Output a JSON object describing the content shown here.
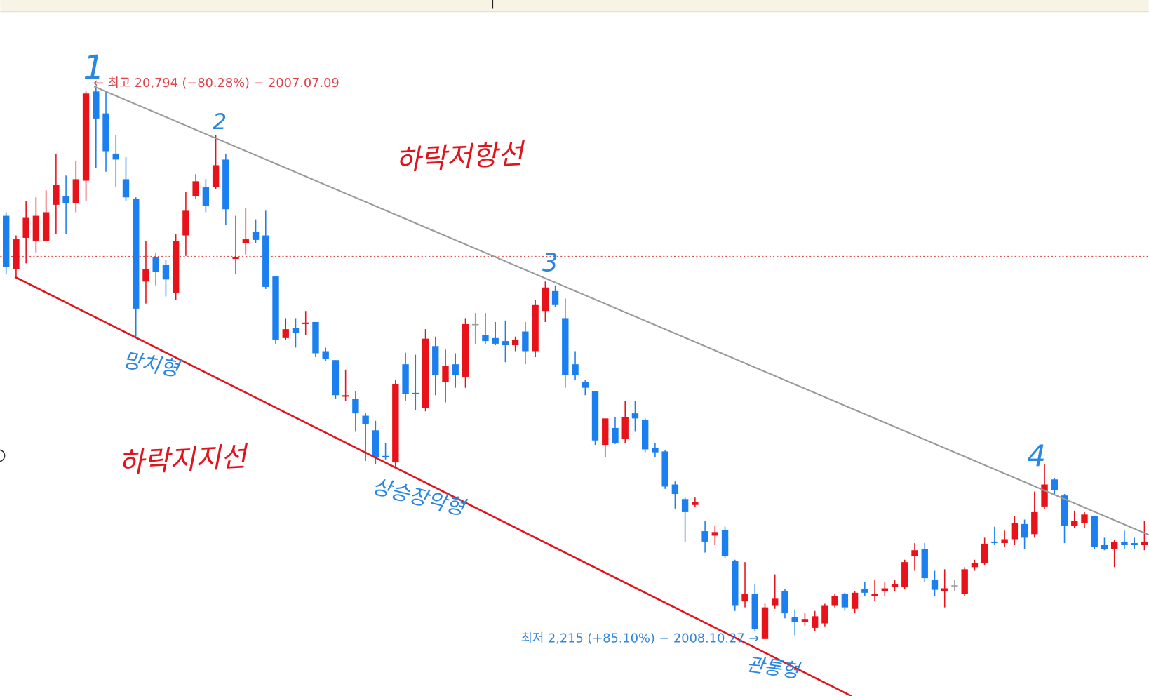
{
  "chart_data": {
    "type": "candlestick",
    "up_color": "#e8121b",
    "down_color": "#1c7ff0",
    "flat_color": "#9a9a9a",
    "ylim": [
      300,
      23200
    ],
    "open": [
      16440,
      14640,
      15700,
      15580,
      15580,
      16810,
      17100,
      16860,
      17620,
      20620,
      19880,
      18530,
      17670,
      17010,
      14230,
      15040,
      14790,
      13860,
      15780,
      17100,
      17420,
      17420,
      18330,
      14990,
      15510,
      15900,
      15780,
      14400,
      12330,
      12680,
      12800,
      12870,
      11890,
      11590,
      10360,
      10290,
      9720,
      9230,
      8370,
      8150,
      11450,
      10490,
      9970,
      12060,
      10860,
      11450,
      11030,
      12800,
      12430,
      12330,
      12230,
      12090,
      12550,
      11890,
      13240,
      13910,
      13000,
      11450,
      10860,
      10540,
      8740,
      9310,
      8940,
      9800,
      9580,
      8640,
      8520,
      7410,
      6920,
      6720,
      5840,
      5690,
      5890,
      4850,
      3480,
      3720,
      2215,
      3330,
      3820,
      2960,
      2790,
      2590,
      2740,
      3330,
      3720,
      3230,
      3890,
      3650,
      3820,
      3970,
      3970,
      5000,
      5250,
      4210,
      3820,
      4020,
      3720,
      4630,
      4760,
      5490,
      5440,
      5570,
      6080,
      5740,
      6670,
      7580,
      7040,
      6030,
      6110,
      6350,
      5370,
      5250,
      5490,
      5440,
      5370
    ],
    "high": [
      16560,
      15780,
      16930,
      17060,
      17300,
      18530,
      17790,
      18290,
      20620,
      20794,
      20620,
      19150,
      18410,
      17060,
      15580,
      15210,
      14960,
      15830,
      17250,
      17840,
      17670,
      19150,
      18530,
      16440,
      16690,
      16320,
      16610,
      14400,
      13000,
      13000,
      13240,
      12870,
      12010,
      11590,
      11270,
      10540,
      9800,
      9550,
      8810,
      10910,
      11840,
      11770,
      12630,
      12380,
      11940,
      11820,
      13000,
      13170,
      13170,
      12870,
      12920,
      12380,
      12870,
      13610,
      14230,
      14100,
      13660,
      11890,
      10910,
      10540,
      9630,
      9680,
      10220,
      10220,
      9630,
      8810,
      8570,
      7510,
      6970,
      6970,
      6180,
      6030,
      5990,
      4880,
      4800,
      4070,
      3400,
      4390,
      3890,
      3210,
      3080,
      3160,
      3400,
      3720,
      3770,
      3820,
      4140,
      4210,
      4140,
      4210,
      4880,
      5440,
      5440,
      4510,
      4560,
      4210,
      4630,
      4880,
      5620,
      5990,
      5860,
      6350,
      6230,
      7170,
      8080,
      7630,
      7090,
      6530,
      6480,
      6350,
      5620,
      5540,
      5860,
      5620,
      6180
    ],
    "low": [
      14470,
      14350,
      14840,
      15210,
      15580,
      15830,
      15830,
      16560,
      16930,
      18040,
      17920,
      17420,
      16930,
      12380,
      13490,
      14100,
      13730,
      13610,
      15090,
      17010,
      16560,
      17350,
      16120,
      14470,
      15140,
      15530,
      13980,
      12140,
      12260,
      12010,
      12430,
      11690,
      11570,
      10290,
      10220,
      9180,
      8200,
      8080,
      8250,
      8000,
      10220,
      9920,
      9870,
      10410,
      10170,
      10660,
      10660,
      12140,
      12140,
      12090,
      11520,
      11890,
      11450,
      11690,
      12870,
      13370,
      10660,
      10910,
      10410,
      8740,
      8320,
      8770,
      8810,
      9180,
      8490,
      8320,
      7260,
      6600,
      5490,
      6650,
      5120,
      5370,
      4950,
      3160,
      3280,
      2490,
      2215,
      3230,
      2910,
      2340,
      2660,
      2490,
      2640,
      3280,
      3160,
      3080,
      3650,
      3480,
      3650,
      3820,
      3890,
      4510,
      4140,
      3650,
      3280,
      3820,
      3650,
      4510,
      4710,
      5370,
      5300,
      5370,
      5250,
      5620,
      6600,
      7090,
      5440,
      5940,
      5940,
      5250,
      5200,
      4630,
      5250,
      5250,
      5200
    ],
    "close": [
      14720,
      15650,
      16370,
      16440,
      16560,
      17470,
      16860,
      17670,
      20550,
      19710,
      18610,
      18330,
      17060,
      13320,
      14640,
      14550,
      14300,
      15580,
      16610,
      17600,
      16760,
      18140,
      16660,
      15040,
      15650,
      15630,
      14050,
      12280,
      12630,
      12500,
      12850,
      11820,
      11640,
      10410,
      10410,
      9800,
      9430,
      8320,
      8320,
      10780,
      10460,
      10460,
      12310,
      11080,
      11400,
      11100,
      12800,
      12800,
      12230,
      12140,
      12090,
      12280,
      11890,
      13440,
      14030,
      13440,
      11100,
      11100,
      10660,
      8890,
      9630,
      8810,
      9680,
      9630,
      8590,
      8490,
      7340,
      7090,
      6480,
      6820,
      5490,
      5810,
      5000,
      3330,
      3720,
      2540,
      3280,
      3570,
      3080,
      2790,
      2890,
      2980,
      3330,
      3650,
      3280,
      3770,
      3770,
      3720,
      3920,
      4070,
      4800,
      5200,
      4260,
      3870,
      3920,
      4020,
      4560,
      4760,
      5420,
      5440,
      5570,
      6110,
      5620,
      6480,
      7410,
      7220,
      6030,
      6180,
      6400,
      5300,
      5250,
      5470,
      5370,
      5370,
      5490
    ],
    "annotations": {
      "high": "← 최고 20,794 (−80.28%) − 2007.07.09",
      "low": "최저 2,215 (+85.10%) − 2008.10.27 →",
      "marks": [
        "1",
        "2",
        "3",
        "4"
      ],
      "resistance": "하락저항선",
      "support": "하락지지선",
      "patterns": [
        "망치형",
        "상승장악형",
        "관통형"
      ]
    }
  }
}
